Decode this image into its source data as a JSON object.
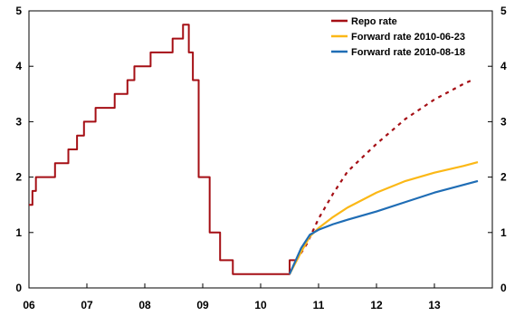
{
  "chart_data": {
    "type": "line",
    "title": "",
    "xlabel": "",
    "ylabel": "",
    "xlim": [
      2006.0,
      2014.0
    ],
    "ylim": [
      0,
      5
    ],
    "x_ticks": [
      {
        "value": 2006.0,
        "label": "06"
      },
      {
        "value": 2007.0,
        "label": "07"
      },
      {
        "value": 2008.0,
        "label": "08"
      },
      {
        "value": 2009.0,
        "label": "09"
      },
      {
        "value": 2010.0,
        "label": "10"
      },
      {
        "value": 2011.0,
        "label": "11"
      },
      {
        "value": 2012.0,
        "label": "12"
      },
      {
        "value": 2013.0,
        "label": "13"
      }
    ],
    "y_ticks": [
      0,
      1,
      2,
      3,
      4,
      5
    ],
    "y_ticks_right": [
      0,
      1,
      2,
      3,
      4,
      5
    ],
    "legend_position": "top-right",
    "grid": false,
    "series": [
      {
        "name": "Repo rate",
        "color": "#A50F15",
        "style": "step",
        "points": [
          [
            2006.0,
            1.5
          ],
          [
            2006.06,
            1.75
          ],
          [
            2006.12,
            2.0
          ],
          [
            2006.45,
            2.25
          ],
          [
            2006.68,
            2.5
          ],
          [
            2006.83,
            2.75
          ],
          [
            2006.95,
            3.0
          ],
          [
            2007.15,
            3.25
          ],
          [
            2007.48,
            3.5
          ],
          [
            2007.7,
            3.75
          ],
          [
            2007.82,
            4.0
          ],
          [
            2008.1,
            4.25
          ],
          [
            2008.48,
            4.5
          ],
          [
            2008.66,
            4.75
          ],
          [
            2008.76,
            4.25
          ],
          [
            2008.83,
            3.75
          ],
          [
            2008.93,
            2.0
          ],
          [
            2009.12,
            1.0
          ],
          [
            2009.3,
            0.5
          ],
          [
            2009.52,
            0.25
          ],
          [
            2010.5,
            0.5
          ],
          [
            2010.62,
            0.5
          ]
        ]
      },
      {
        "name": "",
        "color": "#A50F15",
        "style": "dotted",
        "points": [
          [
            2010.62,
            0.5
          ],
          [
            2010.8,
            0.8
          ],
          [
            2011.0,
            1.25
          ],
          [
            2011.25,
            1.7
          ],
          [
            2011.5,
            2.1
          ],
          [
            2012.0,
            2.6
          ],
          [
            2012.5,
            3.05
          ],
          [
            2013.0,
            3.4
          ],
          [
            2013.5,
            3.68
          ],
          [
            2013.65,
            3.75
          ]
        ]
      },
      {
        "name": "Forward rate 2010-06-23",
        "color": "#FBB817",
        "style": "line",
        "points": [
          [
            2010.5,
            0.25
          ],
          [
            2010.7,
            0.65
          ],
          [
            2010.85,
            0.93
          ],
          [
            2011.0,
            1.08
          ],
          [
            2011.25,
            1.28
          ],
          [
            2011.5,
            1.45
          ],
          [
            2012.0,
            1.72
          ],
          [
            2012.5,
            1.93
          ],
          [
            2013.0,
            2.08
          ],
          [
            2013.5,
            2.2
          ],
          [
            2013.75,
            2.27
          ]
        ]
      },
      {
        "name": "Forward rate 2010-08-18",
        "color": "#1F6DB5",
        "style": "line",
        "points": [
          [
            2010.5,
            0.25
          ],
          [
            2010.7,
            0.72
          ],
          [
            2010.85,
            0.96
          ],
          [
            2011.0,
            1.05
          ],
          [
            2011.25,
            1.15
          ],
          [
            2011.5,
            1.23
          ],
          [
            2012.0,
            1.38
          ],
          [
            2012.5,
            1.55
          ],
          [
            2013.0,
            1.72
          ],
          [
            2013.5,
            1.86
          ],
          [
            2013.75,
            1.93
          ]
        ]
      }
    ]
  }
}
